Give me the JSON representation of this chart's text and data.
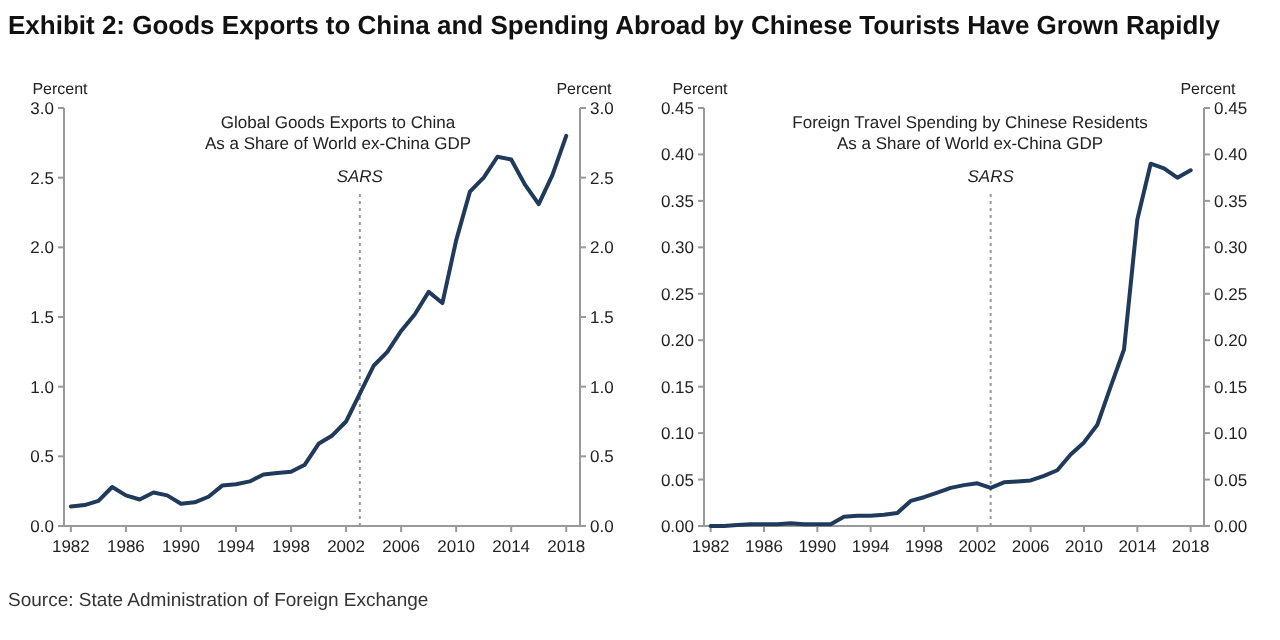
{
  "chart_data": [
    {
      "type": "line",
      "title": "Exhibit 2: Goods Exports to China and Spending Abroad by Chinese Tourists Have Grown Rapidly",
      "subtitle": "Global Goods Exports to China\nAs a Share of  World ex-China GDP",
      "ylabel": "Percent",
      "y2label": "Percent",
      "annotations": [
        "Source: State Administration of Foreign Exchange"
      ],
      "x": [
        1982,
        1983,
        1984,
        1985,
        1986,
        1987,
        1988,
        1989,
        1990,
        1991,
        1992,
        1993,
        1994,
        1995,
        1996,
        1997,
        1998,
        1999,
        2000,
        2001,
        2002,
        2003,
        2004,
        2005,
        2006,
        2007,
        2008,
        2009,
        2010,
        2011,
        2012,
        2013,
        2014,
        2015,
        2016,
        2017,
        2018
      ],
      "series": [
        {
          "color": "#1f3a5a",
          "values": [
            0.14,
            0.15,
            0.18,
            0.28,
            0.22,
            0.19,
            0.24,
            0.22,
            0.16,
            0.17,
            0.21,
            0.29,
            0.3,
            0.32,
            0.37,
            0.38,
            0.39,
            0.44,
            0.59,
            0.65,
            0.75,
            0.95,
            1.15,
            1.25,
            1.4,
            1.52,
            1.68,
            1.6,
            2.05,
            2.4,
            2.5,
            2.65,
            2.63,
            2.45,
            2.31,
            2.52,
            2.8
          ]
        }
      ],
      "xlim": [
        1981.5,
        2019
      ],
      "xticks": [
        1982,
        1986,
        1990,
        1994,
        1998,
        2002,
        2006,
        2010,
        2014,
        2018
      ],
      "ylim": [
        0,
        3
      ],
      "yticks": [
        {
          "value": 0,
          "label": "0.0"
        },
        0.5,
        {
          "value": 1,
          "label": "1.0"
        },
        1.5,
        {
          "value": 2,
          "label": "2.0"
        },
        2.5,
        {
          "value": 3,
          "label": "3.0"
        }
      ],
      "y2lim": [
        0,
        3
      ],
      "y2ticks": [
        {
          "value": 0,
          "label": "0.0"
        },
        0.5,
        {
          "value": 1,
          "label": "1.0"
        },
        1.5,
        {
          "value": 2,
          "label": "2.0"
        },
        2.5,
        {
          "value": 3,
          "label": "3.0"
        }
      ],
      "ref_lines": [
        {
          "axis": "x",
          "value": 2003,
          "label": "SARS",
          "color": "#999999",
          "line_style": "dotted"
        }
      ]
    },
    {
      "type": "line",
      "subtitle": "Foreign Travel Spending by Chinese Residents\nAs a Share of  World ex-China GDP",
      "ylabel": "Percent",
      "y2label": "Percent",
      "x": [
        1982,
        1983,
        1984,
        1985,
        1986,
        1987,
        1988,
        1989,
        1990,
        1991,
        1992,
        1993,
        1994,
        1995,
        1996,
        1997,
        1998,
        1999,
        2000,
        2001,
        2002,
        2003,
        2004,
        2005,
        2006,
        2007,
        2008,
        2009,
        2010,
        2011,
        2012,
        2013,
        2014,
        2015,
        2016,
        2017,
        2018
      ],
      "series": [
        {
          "color": "#1f3a5a",
          "values": [
            0,
            0,
            0.001,
            0.002,
            0.002,
            0.002,
            0.003,
            0.002,
            0.002,
            0.002,
            0.01,
            0.011,
            0.011,
            0.012,
            0.014,
            0.027,
            0.031,
            0.036,
            0.041,
            0.044,
            0.046,
            0.041,
            0.047,
            0.048,
            0.049,
            0.054,
            0.06,
            0.077,
            0.09,
            0.109,
            0.15,
            0.19,
            0.33,
            0.39,
            0.385,
            0.375,
            0.383
          ]
        }
      ],
      "xlim": [
        1981.5,
        2019
      ],
      "xticks": [
        1982,
        1986,
        1990,
        1994,
        1998,
        2002,
        2006,
        2010,
        2014,
        2018
      ],
      "ylim": [
        0,
        0.45
      ],
      "yticks": [
        {
          "value": 0,
          "label": "0.00"
        },
        0.05,
        {
          "value": 0.1,
          "label": "0.10"
        },
        0.15,
        {
          "value": 0.2,
          "label": "0.20"
        },
        0.25,
        {
          "value": 0.3,
          "label": "0.30"
        },
        0.35,
        {
          "value": 0.4,
          "label": "0.40"
        },
        0.45
      ],
      "y2lim": [
        0,
        0.45
      ],
      "y2ticks": [
        {
          "value": 0,
          "label": "0.00"
        },
        0.05,
        {
          "value": 0.1,
          "label": "0.10"
        },
        0.15,
        {
          "value": 0.2,
          "label": "0.20"
        },
        0.25,
        {
          "value": 0.3,
          "label": "0.30"
        },
        0.35,
        {
          "value": 0.4,
          "label": "0.40"
        },
        0.45
      ],
      "ref_lines": [
        {
          "axis": "x",
          "value": 2003,
          "label": "SARS",
          "color": "#999999",
          "line_style": "dotted"
        }
      ]
    }
  ]
}
